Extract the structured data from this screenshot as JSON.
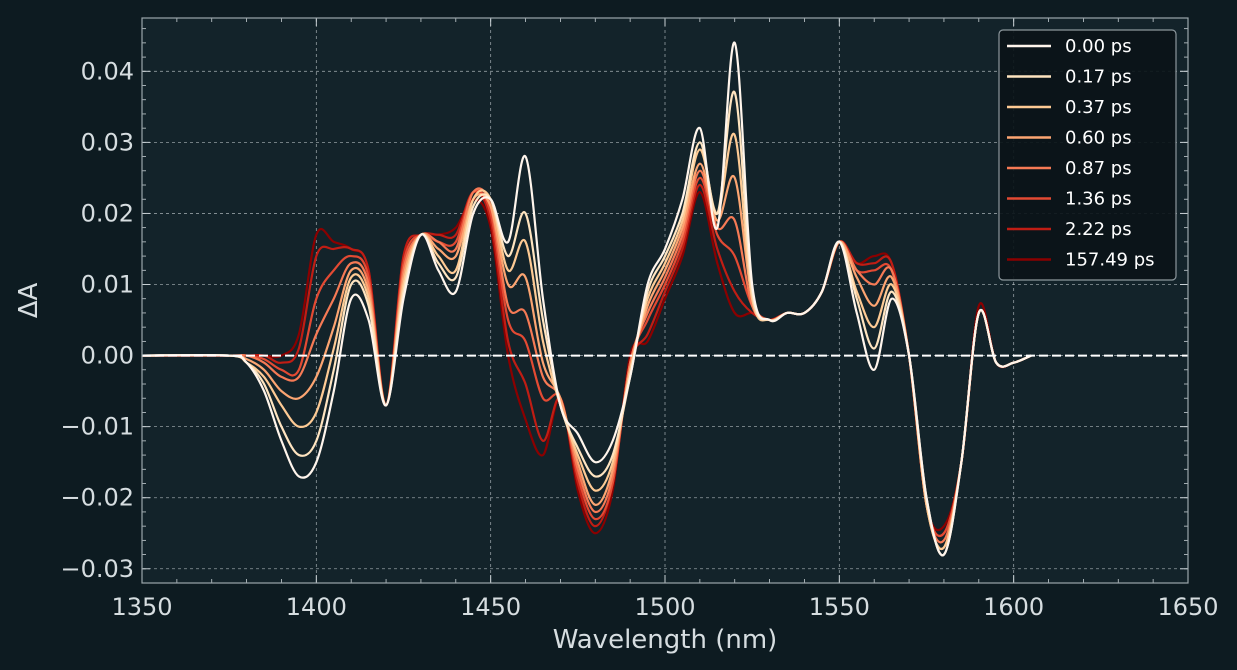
{
  "chart_data": {
    "type": "line",
    "title": "",
    "xlabel": "Wavelength (nm)",
    "ylabel": "ΔA",
    "xlim": [
      1350,
      1650
    ],
    "ylim": [
      -0.032,
      0.0475
    ],
    "xticks": [
      1350,
      1400,
      1450,
      1500,
      1550,
      1600,
      1650
    ],
    "xtick_labels": [
      "1350",
      "1400",
      "1450",
      "1500",
      "1550",
      "1600",
      "1650"
    ],
    "yticks": [
      -0.03,
      -0.02,
      -0.01,
      0.0,
      0.01,
      0.02,
      0.03,
      0.04
    ],
    "ytick_labels": [
      "−0.03",
      "−0.02",
      "−0.01",
      "0.00",
      "0.01",
      "0.02",
      "0.03",
      "0.04"
    ],
    "grid": true,
    "legend_position": "top-right",
    "zero_line": {
      "y": 0,
      "color": "#ffffff",
      "style": "dashed"
    },
    "background": "#13232a",
    "page_background": "#0d1b21",
    "series": [
      {
        "name": "0.00 ps",
        "color": "#fff5ec"
      },
      {
        "name": "0.17 ps",
        "color": "#fee4c0"
      },
      {
        "name": "0.37 ps",
        "color": "#fdca94"
      },
      {
        "name": "0.60 ps",
        "color": "#fca572"
      },
      {
        "name": "0.87 ps",
        "color": "#f67a55"
      },
      {
        "name": "1.36 ps",
        "color": "#e34a33"
      },
      {
        "name": "2.22 ps",
        "color": "#c01d14"
      },
      {
        "name": "157.49 ps",
        "color": "#8b0000"
      }
    ],
    "x": [
      1375,
      1380,
      1385,
      1390,
      1395,
      1400,
      1405,
      1410,
      1415,
      1420,
      1425,
      1430,
      1435,
      1440,
      1445,
      1450,
      1455,
      1460,
      1465,
      1470,
      1475,
      1480,
      1485,
      1490,
      1495,
      1500,
      1505,
      1510,
      1515,
      1520,
      1525,
      1530,
      1535,
      1540,
      1545,
      1550,
      1555,
      1560,
      1565,
      1570,
      1575,
      1580,
      1585,
      1590,
      1595,
      1600,
      1605
    ],
    "values": [
      [
        0,
        -0.001,
        -0.005,
        -0.012,
        -0.017,
        -0.015,
        -0.005,
        0.008,
        0.005,
        -0.007,
        0.008,
        0.017,
        0.012,
        0.009,
        0.02,
        0.022,
        0.016,
        0.028,
        0.008,
        -0.007,
        -0.011,
        -0.015,
        -0.012,
        -0.003,
        0.01,
        0.015,
        0.022,
        0.032,
        0.018,
        0.044,
        0.01,
        0.005,
        0.006,
        0.006,
        0.009,
        0.016,
        0.006,
        -0.002,
        0.008,
        0.0,
        -0.02,
        -0.028,
        -0.015,
        0.006,
        -0.001,
        -0.001,
        0
      ],
      [
        0,
        -0.001,
        -0.004,
        -0.01,
        -0.014,
        -0.012,
        -0.002,
        0.01,
        0.007,
        -0.007,
        0.009,
        0.017,
        0.013,
        0.011,
        0.021,
        0.022,
        0.014,
        0.02,
        0.005,
        -0.007,
        -0.013,
        -0.017,
        -0.014,
        -0.003,
        0.009,
        0.014,
        0.02,
        0.03,
        0.02,
        0.037,
        0.009,
        0.005,
        0.006,
        0.006,
        0.009,
        0.016,
        0.008,
        0.001,
        0.009,
        0.0,
        -0.02,
        -0.028,
        -0.015,
        0.006,
        -0.001,
        -0.001,
        0
      ],
      [
        0,
        -0.001,
        -0.003,
        -0.007,
        -0.01,
        -0.008,
        0.001,
        0.011,
        0.008,
        -0.007,
        0.01,
        0.017,
        0.014,
        0.012,
        0.022,
        0.022,
        0.012,
        0.016,
        0.002,
        -0.007,
        -0.014,
        -0.019,
        -0.015,
        -0.002,
        0.008,
        0.013,
        0.019,
        0.029,
        0.02,
        0.031,
        0.008,
        0.005,
        0.006,
        0.006,
        0.009,
        0.016,
        0.009,
        0.004,
        0.01,
        0.0,
        -0.021,
        -0.027,
        -0.015,
        0.006,
        -0.001,
        -0.001,
        0
      ],
      [
        0,
        -0.0005,
        -0.002,
        -0.005,
        -0.006,
        -0.003,
        0.004,
        0.012,
        0.009,
        -0.007,
        0.011,
        0.017,
        0.015,
        0.014,
        0.022,
        0.021,
        0.01,
        0.011,
        -0.001,
        -0.006,
        -0.015,
        -0.021,
        -0.016,
        -0.002,
        0.007,
        0.012,
        0.018,
        0.027,
        0.019,
        0.025,
        0.008,
        0.005,
        0.006,
        0.006,
        0.009,
        0.016,
        0.011,
        0.007,
        0.011,
        0.0,
        -0.021,
        -0.027,
        -0.015,
        0.006,
        -0.001,
        -0.001,
        0
      ],
      [
        0,
        0,
        -0.001,
        -0.003,
        -0.003,
        0.003,
        0.008,
        0.013,
        0.01,
        -0.007,
        0.012,
        0.017,
        0.016,
        0.015,
        0.023,
        0.021,
        0.007,
        0.006,
        -0.003,
        -0.006,
        -0.016,
        -0.022,
        -0.017,
        -0.001,
        0.006,
        0.011,
        0.017,
        0.026,
        0.018,
        0.019,
        0.007,
        0.005,
        0.006,
        0.006,
        0.009,
        0.016,
        0.012,
        0.01,
        0.012,
        0.0,
        -0.021,
        -0.026,
        -0.015,
        0.006,
        -0.001,
        -0.001,
        0
      ],
      [
        0,
        0,
        -0.0005,
        -0.002,
        -0.002,
        0.008,
        0.012,
        0.014,
        0.011,
        -0.007,
        0.013,
        0.017,
        0.016,
        0.016,
        0.023,
        0.02,
        0.005,
        0.002,
        -0.006,
        -0.006,
        -0.017,
        -0.023,
        -0.018,
        -0.001,
        0.005,
        0.01,
        0.016,
        0.025,
        0.017,
        0.014,
        0.007,
        0.005,
        0.006,
        0.006,
        0.009,
        0.016,
        0.012,
        0.012,
        0.012,
        0.0,
        -0.021,
        -0.025,
        -0.015,
        0.006,
        -0.001,
        -0.001,
        0
      ],
      [
        0,
        0,
        0,
        -0.001,
        0.001,
        0.014,
        0.015,
        0.015,
        0.012,
        -0.007,
        0.014,
        0.017,
        0.017,
        0.017,
        0.023,
        0.019,
        0.002,
        -0.004,
        -0.012,
        -0.006,
        -0.018,
        -0.024,
        -0.018,
        -0.001,
        0.003,
        0.009,
        0.015,
        0.024,
        0.015,
        0.009,
        0.006,
        0.005,
        0.006,
        0.006,
        0.009,
        0.016,
        0.013,
        0.013,
        0.013,
        0.0,
        -0.021,
        -0.025,
        -0.015,
        0.006,
        -0.001,
        -0.001,
        0
      ],
      [
        0,
        0,
        0,
        0,
        0.003,
        0.017,
        0.016,
        0.015,
        0.012,
        -0.007,
        0.014,
        0.017,
        0.017,
        0.018,
        0.022,
        0.018,
        0.0,
        -0.009,
        -0.014,
        -0.006,
        -0.019,
        -0.025,
        -0.019,
        0.0,
        0.002,
        0.008,
        0.014,
        0.023,
        0.013,
        0.006,
        0.006,
        0.005,
        0.006,
        0.006,
        0.009,
        0.016,
        0.013,
        0.014,
        0.013,
        0.0,
        -0.021,
        -0.024,
        -0.015,
        0.007,
        -0.001,
        -0.001,
        0
      ]
    ]
  }
}
